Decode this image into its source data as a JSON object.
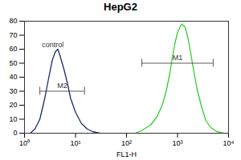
{
  "chart_data": {
    "type": "line",
    "title": "HepG2",
    "x_label": "FL1-H",
    "log": "x",
    "xlim": [
      1,
      10000
    ],
    "xticks": [
      {
        "value": 1,
        "label": "10⁰"
      },
      {
        "value": 10,
        "label": "10¹"
      },
      {
        "value": 100,
        "label": "10²"
      },
      {
        "value": 1000,
        "label": "10³"
      },
      {
        "value": 10000,
        "label": "10⁴"
      }
    ],
    "ylim": [
      0,
      80
    ],
    "yticks": [
      0,
      10,
      20,
      30,
      40,
      50,
      60,
      70,
      80
    ],
    "series": [
      {
        "name": "control",
        "color": "#1f2a6b",
        "x": [
          1.3,
          1.6,
          2,
          2.5,
          3,
          3.5,
          4,
          4.5,
          5,
          6,
          7,
          8,
          10,
          13,
          17,
          22,
          30
        ],
        "values": [
          0,
          3,
          10,
          25,
          40,
          52,
          58,
          60,
          55,
          45,
          35,
          25,
          15,
          7,
          3,
          1,
          0
        ]
      },
      {
        "color": "#33cc33",
        "x": [
          150,
          200,
          300,
          400,
          500,
          600,
          700,
          800,
          900,
          1000,
          1200,
          1400,
          1600,
          1800,
          2000,
          2400,
          3000,
          3600,
          4500,
          6000,
          8000
        ],
        "values": [
          0,
          2,
          6,
          12,
          20,
          30,
          42,
          55,
          65,
          72,
          78,
          76,
          68,
          58,
          48,
          32,
          18,
          9,
          4,
          1,
          0
        ]
      }
    ],
    "annotations": [
      {
        "text": "control",
        "x": 2.2,
        "y": 63
      }
    ],
    "gates": [
      {
        "label": "M2",
        "x": [
          2,
          15
        ],
        "y": 30
      },
      {
        "label": "M1",
        "x": [
          200,
          5000
        ],
        "y": 50
      }
    ]
  }
}
